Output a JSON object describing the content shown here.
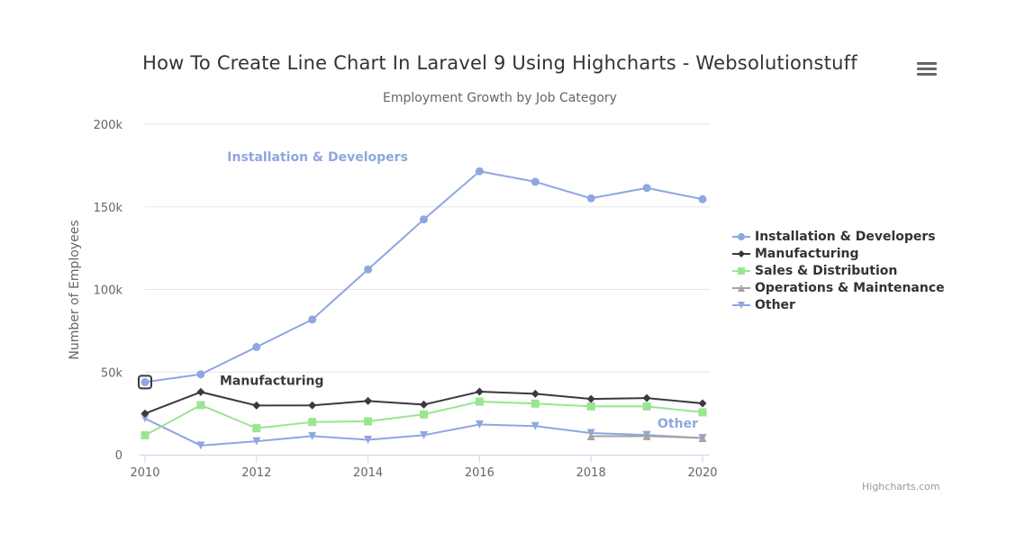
{
  "chart_data": {
    "type": "line",
    "title": "How To Create Line Chart In Laravel 9 Using Highcharts - Websolutionstuff",
    "subtitle": "Employment Growth by Job Category",
    "ylabel": "Number of Employees",
    "xlabel": "",
    "ylim": [
      0,
      200000
    ],
    "xlim": [
      2010,
      2020
    ],
    "y_ticks": [
      {
        "value": 0,
        "label": "0"
      },
      {
        "value": 50000,
        "label": "50k"
      },
      {
        "value": 100000,
        "label": "100k"
      },
      {
        "value": 150000,
        "label": "150k"
      },
      {
        "value": 200000,
        "label": "200k"
      }
    ],
    "x_ticks": [
      {
        "value": 2010,
        "label": "2010"
      },
      {
        "value": 2012,
        "label": "2012"
      },
      {
        "value": 2014,
        "label": "2014"
      },
      {
        "value": 2016,
        "label": "2016"
      },
      {
        "value": 2018,
        "label": "2018"
      },
      {
        "value": 2020,
        "label": "2020"
      }
    ],
    "grid": true,
    "legend_position": "right",
    "x": [
      2010,
      2011,
      2012,
      2013,
      2014,
      2015,
      2016,
      2017,
      2018,
      2019,
      2020
    ],
    "series": [
      {
        "name": "Installation & Developers",
        "color": "#8ea7e0",
        "marker": "circle",
        "values": [
          43934,
          48656,
          65165,
          81827,
          112143,
          142383,
          171533,
          165174,
          155157,
          161454,
          154610
        ],
        "label": "Installation & Developers"
      },
      {
        "name": "Manufacturing",
        "color": "#3a3a3e",
        "marker": "diamond",
        "values": [
          24916,
          37941,
          29742,
          29851,
          32490,
          30282,
          38121,
          36885,
          33726,
          34243,
          31050
        ],
        "label": "Manufacturing"
      },
      {
        "name": "Sales & Distribution",
        "color": "#9ae591",
        "marker": "square",
        "values": [
          11744,
          30000,
          16005,
          19771,
          20185,
          24377,
          32147,
          30912,
          29243,
          29213,
          25663
        ],
        "label": ""
      },
      {
        "name": "Operations & Maintenance",
        "color": "#a9a3a3",
        "marker": "triangle",
        "values": [
          null,
          null,
          null,
          null,
          null,
          null,
          null,
          null,
          11164,
          11218,
          10077
        ],
        "label": ""
      },
      {
        "name": "Other",
        "color": "#8ea7e0",
        "marker": "triangle-down",
        "values": [
          21908,
          5548,
          8105,
          11248,
          8989,
          11816,
          18274,
          17300,
          13053,
          11906,
          10073
        ],
        "label": "Other"
      }
    ],
    "highlighted_point": {
      "series": "Installation & Developers",
      "x": 2010
    }
  },
  "ui": {
    "menu_icon": "hamburger-menu-icon",
    "credits": "Highcharts.com"
  }
}
